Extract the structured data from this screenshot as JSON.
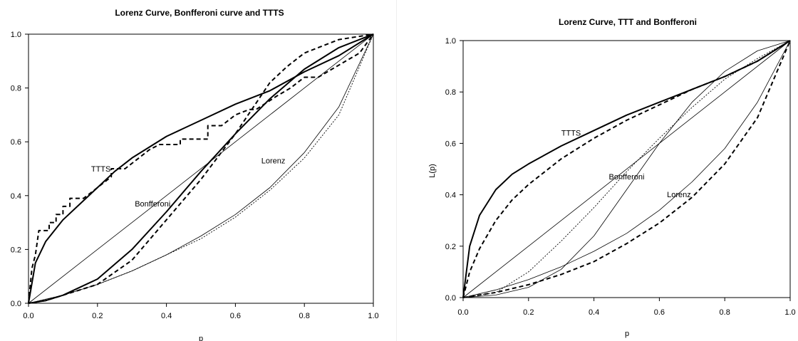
{
  "chart_data": [
    {
      "type": "line",
      "title": "Lorenz Curve, Bonfferoni curve and TTTS",
      "xlabel": "p",
      "ylabel": "",
      "xlim": [
        0,
        1
      ],
      "ylim": [
        0,
        1
      ],
      "xticks": [
        "0.0",
        "0.2",
        "0.4",
        "0.6",
        "0.8",
        "1.0"
      ],
      "yticks": [
        "0.0",
        "0.2",
        "0.4",
        "0.6",
        "0.8",
        "1.0"
      ],
      "grid": false,
      "annotations": [
        {
          "text": "TTTS",
          "x": 0.21,
          "y": 0.49
        },
        {
          "text": "Bonfferoni",
          "x": 0.36,
          "y": 0.36
        },
        {
          "text": "Lorenz",
          "x": 0.71,
          "y": 0.52
        }
      ],
      "series": [
        {
          "style": "thin-solid",
          "x": [
            0,
            1
          ],
          "y": [
            0,
            1
          ]
        },
        {
          "style": "thick-solid",
          "x": [
            0,
            0.02,
            0.05,
            0.1,
            0.15,
            0.2,
            0.25,
            0.3,
            0.4,
            0.5,
            0.6,
            0.7,
            0.8,
            0.9,
            1.0
          ],
          "y": [
            0,
            0.15,
            0.23,
            0.31,
            0.37,
            0.43,
            0.49,
            0.54,
            0.62,
            0.68,
            0.74,
            0.79,
            0.86,
            0.92,
            1.0
          ]
        },
        {
          "style": "thick-dashed",
          "x": [
            0,
            0.01,
            0.02,
            0.03,
            0.06,
            0.06,
            0.08,
            0.08,
            0.1,
            0.1,
            0.12,
            0.12,
            0.16,
            0.2,
            0.24,
            0.24,
            0.28,
            0.28,
            0.32,
            0.35,
            0.38,
            0.38,
            0.44,
            0.44,
            0.52,
            0.52,
            0.56,
            0.58,
            0.6,
            0.64,
            0.66,
            0.72,
            0.76,
            0.8,
            0.84,
            0.88,
            0.92,
            0.96,
            1.0
          ],
          "y": [
            0,
            0.13,
            0.18,
            0.27,
            0.27,
            0.3,
            0.3,
            0.33,
            0.33,
            0.36,
            0.36,
            0.39,
            0.39,
            0.43,
            0.47,
            0.5,
            0.5,
            0.5,
            0.54,
            0.57,
            0.59,
            0.59,
            0.59,
            0.61,
            0.61,
            0.66,
            0.66,
            0.68,
            0.7,
            0.72,
            0.72,
            0.77,
            0.8,
            0.84,
            0.84,
            0.87,
            0.9,
            0.93,
            1.0
          ]
        },
        {
          "style": "thick-solid",
          "x": [
            0,
            0.05,
            0.1,
            0.2,
            0.3,
            0.4,
            0.5,
            0.6,
            0.7,
            0.8,
            0.9,
            1.0
          ],
          "y": [
            0,
            0.01,
            0.03,
            0.09,
            0.2,
            0.34,
            0.49,
            0.63,
            0.76,
            0.87,
            0.95,
            1.0
          ]
        },
        {
          "style": "thick-dashed",
          "x": [
            0,
            0.05,
            0.1,
            0.2,
            0.3,
            0.4,
            0.5,
            0.6,
            0.7,
            0.75,
            0.8,
            0.9,
            1.0
          ],
          "y": [
            0,
            0.01,
            0.03,
            0.07,
            0.16,
            0.31,
            0.46,
            0.63,
            0.82,
            0.88,
            0.93,
            0.98,
            1.0
          ]
        },
        {
          "style": "thin-solid",
          "x": [
            0,
            0.1,
            0.2,
            0.3,
            0.4,
            0.5,
            0.6,
            0.7,
            0.8,
            0.9,
            1.0
          ],
          "y": [
            0,
            0.03,
            0.07,
            0.12,
            0.18,
            0.25,
            0.33,
            0.43,
            0.56,
            0.73,
            1.0
          ]
        },
        {
          "style": "thin-dotted",
          "x": [
            0,
            0.1,
            0.2,
            0.3,
            0.4,
            0.5,
            0.6,
            0.7,
            0.8,
            0.9,
            1.0
          ],
          "y": [
            0,
            0.03,
            0.07,
            0.12,
            0.18,
            0.24,
            0.32,
            0.42,
            0.54,
            0.7,
            1.0
          ]
        }
      ]
    },
    {
      "type": "line",
      "title": "Lorenz Curve, TTT and Bonfferoni",
      "xlabel": "p",
      "ylabel": "L(p)",
      "xlim": [
        0,
        1
      ],
      "ylim": [
        0,
        1
      ],
      "xticks": [
        "0.0",
        "0.2",
        "0.4",
        "0.6",
        "0.8",
        "1.0"
      ],
      "yticks": [
        "0.0",
        "0.2",
        "0.4",
        "0.6",
        "0.8",
        "1.0"
      ],
      "grid": false,
      "annotations": [
        {
          "text": "TTTS",
          "x": 0.33,
          "y": 0.63
        },
        {
          "text": "Bonfferoni",
          "x": 0.5,
          "y": 0.46
        },
        {
          "text": "Lorenz",
          "x": 0.66,
          "y": 0.39
        }
      ],
      "series": [
        {
          "style": "thin-solid",
          "x": [
            0,
            1
          ],
          "y": [
            0,
            1
          ]
        },
        {
          "style": "thick-solid",
          "x": [
            0,
            0.02,
            0.05,
            0.1,
            0.15,
            0.2,
            0.3,
            0.4,
            0.5,
            0.6,
            0.7,
            0.8,
            0.9,
            1.0
          ],
          "y": [
            0,
            0.2,
            0.32,
            0.42,
            0.48,
            0.52,
            0.59,
            0.65,
            0.71,
            0.76,
            0.81,
            0.86,
            0.92,
            1.0
          ]
        },
        {
          "style": "thick-dashed",
          "x": [
            0,
            0.02,
            0.05,
            0.1,
            0.15,
            0.2,
            0.3,
            0.4,
            0.5,
            0.6,
            0.7,
            0.8,
            0.9,
            1.0
          ],
          "y": [
            0,
            0.1,
            0.19,
            0.3,
            0.38,
            0.44,
            0.54,
            0.62,
            0.69,
            0.75,
            0.81,
            0.86,
            0.92,
            1.0
          ]
        },
        {
          "style": "thin-dotted",
          "x": [
            0,
            0.1,
            0.2,
            0.3,
            0.4,
            0.5,
            0.6,
            0.7,
            0.8,
            0.9,
            1.0
          ],
          "y": [
            0,
            0.02,
            0.1,
            0.22,
            0.35,
            0.49,
            0.62,
            0.74,
            0.85,
            0.93,
            1.0
          ]
        },
        {
          "style": "thin-solid",
          "x": [
            0,
            0.1,
            0.2,
            0.3,
            0.4,
            0.5,
            0.6,
            0.7,
            0.8,
            0.9,
            1.0
          ],
          "y": [
            0,
            0.01,
            0.04,
            0.11,
            0.24,
            0.42,
            0.6,
            0.76,
            0.88,
            0.96,
            1.0
          ]
        },
        {
          "style": "thin-solid",
          "x": [
            0,
            0.1,
            0.2,
            0.3,
            0.4,
            0.5,
            0.6,
            0.7,
            0.8,
            0.9,
            1.0
          ],
          "y": [
            0,
            0.03,
            0.07,
            0.12,
            0.18,
            0.25,
            0.34,
            0.45,
            0.58,
            0.76,
            1.0
          ]
        },
        {
          "style": "thick-dashed",
          "x": [
            0,
            0.1,
            0.2,
            0.3,
            0.4,
            0.5,
            0.6,
            0.7,
            0.8,
            0.9,
            1.0
          ],
          "y": [
            0,
            0.02,
            0.05,
            0.09,
            0.14,
            0.21,
            0.29,
            0.39,
            0.52,
            0.7,
            1.0
          ]
        }
      ]
    }
  ]
}
